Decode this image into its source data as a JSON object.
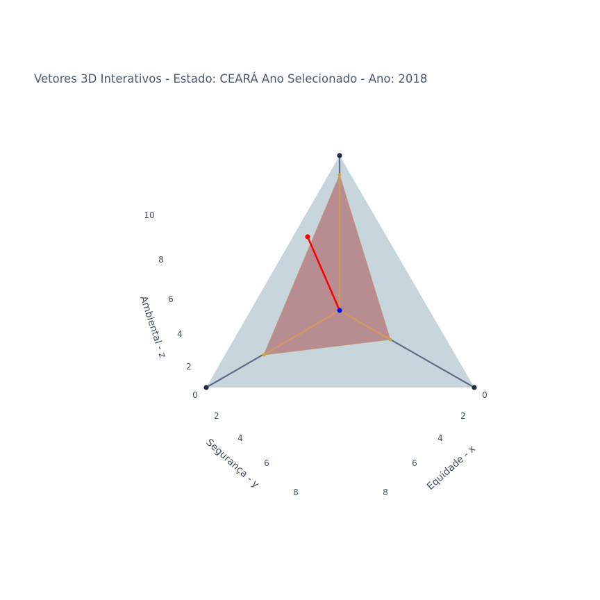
{
  "title": "Vetores 3D Interativos - Estado: CEARÁ Ano Selecionado - Ano: 2018",
  "chart_data": {
    "type": "scatter",
    "projection": "3d",
    "title": "Vetores 3D Interativos - Estado: CEARÁ Ano Selecionado - Ano: 2018",
    "axes": {
      "x": {
        "label": "Equidade - x",
        "ticks": [
          "0",
          "2",
          "4",
          "6",
          "8"
        ]
      },
      "y": {
        "label": "Segurança - y",
        "ticks": [
          "0",
          "2",
          "4",
          "6",
          "8"
        ]
      },
      "z": {
        "label": "Ambiental - z",
        "ticks": [
          "2",
          "4",
          "6",
          "8",
          "10"
        ]
      }
    },
    "series": [
      {
        "color": "#cfdde3",
        "values": {
          "x": [
            10,
            0,
            0
          ],
          "y": [
            0,
            10,
            0
          ],
          "z": [
            0,
            0,
            10
          ]
        }
      },
      {
        "color": "#b98b91",
        "values": {
          "x": [
            6.5,
            0,
            0
          ],
          "y": [
            0,
            6.8,
            0
          ],
          "z": [
            0,
            0,
            9.2
          ]
        }
      },
      {
        "color": "#ff0000",
        "values": {
          "x": [
            0,
            0
          ],
          "y": [
            0,
            1.5
          ],
          "z": [
            0,
            7
          ]
        }
      }
    ],
    "origin_color": "#0000ff"
  }
}
